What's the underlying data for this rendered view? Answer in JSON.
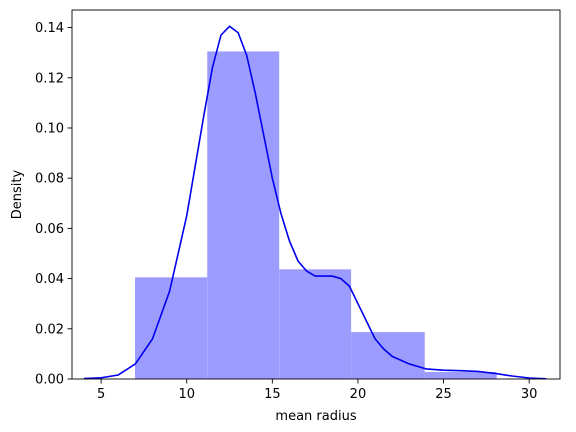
{
  "chart_data": {
    "type": "histogram",
    "title": "",
    "xlabel": "mean radius",
    "ylabel": "Density",
    "xlim": [
      3.3,
      31.8
    ],
    "ylim": [
      0,
      0.147
    ],
    "xticks": [
      5,
      10,
      15,
      20,
      25,
      30
    ],
    "yticks": [
      0.0,
      0.02,
      0.04,
      0.06,
      0.08,
      0.1,
      0.12,
      0.14
    ],
    "grid": false,
    "colors": {
      "bars": "#9c9cff",
      "kde_line": "#0000ee",
      "axes": "#000000"
    },
    "bins": [
      {
        "x0": 6.98,
        "x1": 11.2,
        "density": 0.0405
      },
      {
        "x0": 11.2,
        "x1": 15.4,
        "density": 0.1305
      },
      {
        "x0": 15.4,
        "x1": 19.6,
        "density": 0.0437
      },
      {
        "x0": 19.6,
        "x1": 23.9,
        "density": 0.0187
      },
      {
        "x0": 23.9,
        "x1": 28.1,
        "density": 0.0028
      }
    ],
    "kde": {
      "x": [
        4.0,
        5.0,
        6.0,
        7.0,
        8.0,
        9.0,
        10.0,
        10.5,
        11.0,
        11.5,
        12.0,
        12.5,
        13.0,
        13.5,
        14.0,
        14.5,
        15.0,
        15.5,
        16.0,
        16.5,
        17.0,
        17.5,
        18.0,
        18.5,
        19.0,
        19.5,
        20.0,
        20.5,
        21.0,
        21.5,
        22.0,
        23.0,
        24.0,
        25.0,
        26.0,
        27.0,
        28.0,
        29.0,
        30.0,
        31.0
      ],
      "y": [
        0.0002,
        0.0005,
        0.0016,
        0.006,
        0.016,
        0.035,
        0.065,
        0.085,
        0.105,
        0.124,
        0.137,
        0.1405,
        0.138,
        0.129,
        0.114,
        0.097,
        0.08,
        0.066,
        0.055,
        0.047,
        0.043,
        0.041,
        0.041,
        0.041,
        0.04,
        0.037,
        0.03,
        0.023,
        0.016,
        0.012,
        0.009,
        0.006,
        0.004,
        0.0035,
        0.0033,
        0.003,
        0.0022,
        0.0012,
        0.0004,
        0.0001
      ]
    }
  }
}
